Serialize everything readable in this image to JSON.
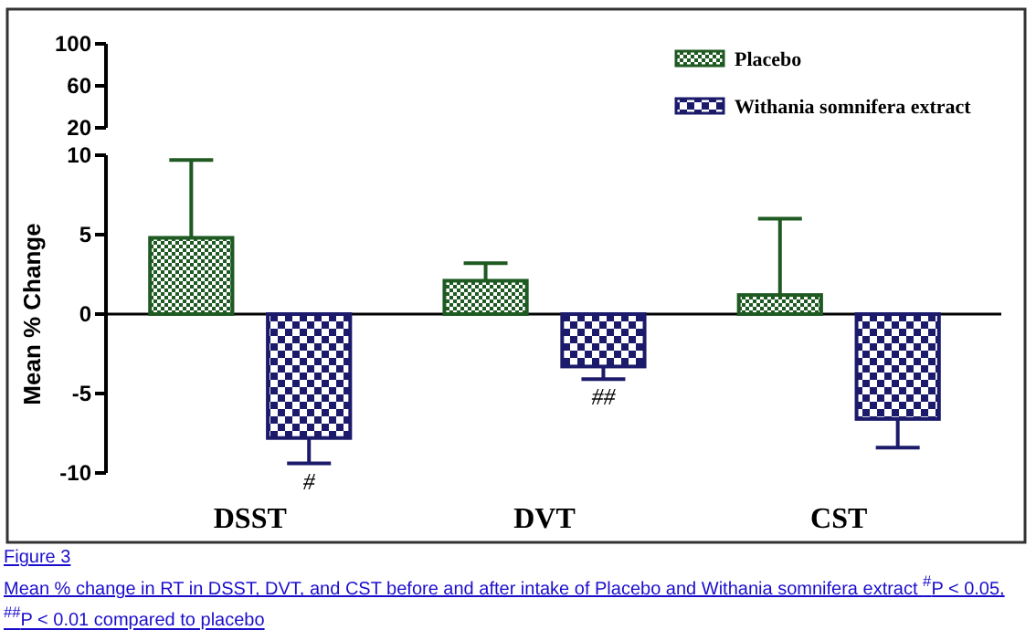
{
  "chart_data": [
    {
      "type": "other",
      "annotations": [
        "100",
        "60",
        "20"
      ]
    },
    {
      "type": "bar",
      "ylabel": "Mean % Change",
      "categories": [
        "DSST",
        "DVT",
        "CST"
      ],
      "series": [
        {
          "name": "Placebo",
          "color": "#1f5a22",
          "values": [
            4.8,
            2.1,
            1.2
          ],
          "errors": [
            [
              4.8,
              9.7
            ],
            [
              2.1,
              3.2
            ],
            [
              1.2,
              6.0
            ]
          ]
        },
        {
          "name": "Withania somnifera extract",
          "color": "#1c1a6a",
          "values": [
            -7.8,
            -3.3,
            -6.6
          ],
          "errors": [
            [
              -9.4,
              -7.8
            ],
            [
              -4.1,
              -3.3
            ],
            [
              -8.4,
              -6.6
            ]
          ]
        }
      ],
      "ylim": [
        -10,
        10
      ],
      "yticks": [
        -10,
        -5,
        0,
        5,
        10
      ],
      "legend": "top right",
      "annotations": [
        "#",
        "##",
        "Figure 3",
        "Mean % change in RT in DSST, DVT, and CST before and after intake of Placebo and Withania somnifera extract $^{#}$P < 0.05, $^{##}$P < 0.01 compared to placebo"
      ]
    }
  ]
}
